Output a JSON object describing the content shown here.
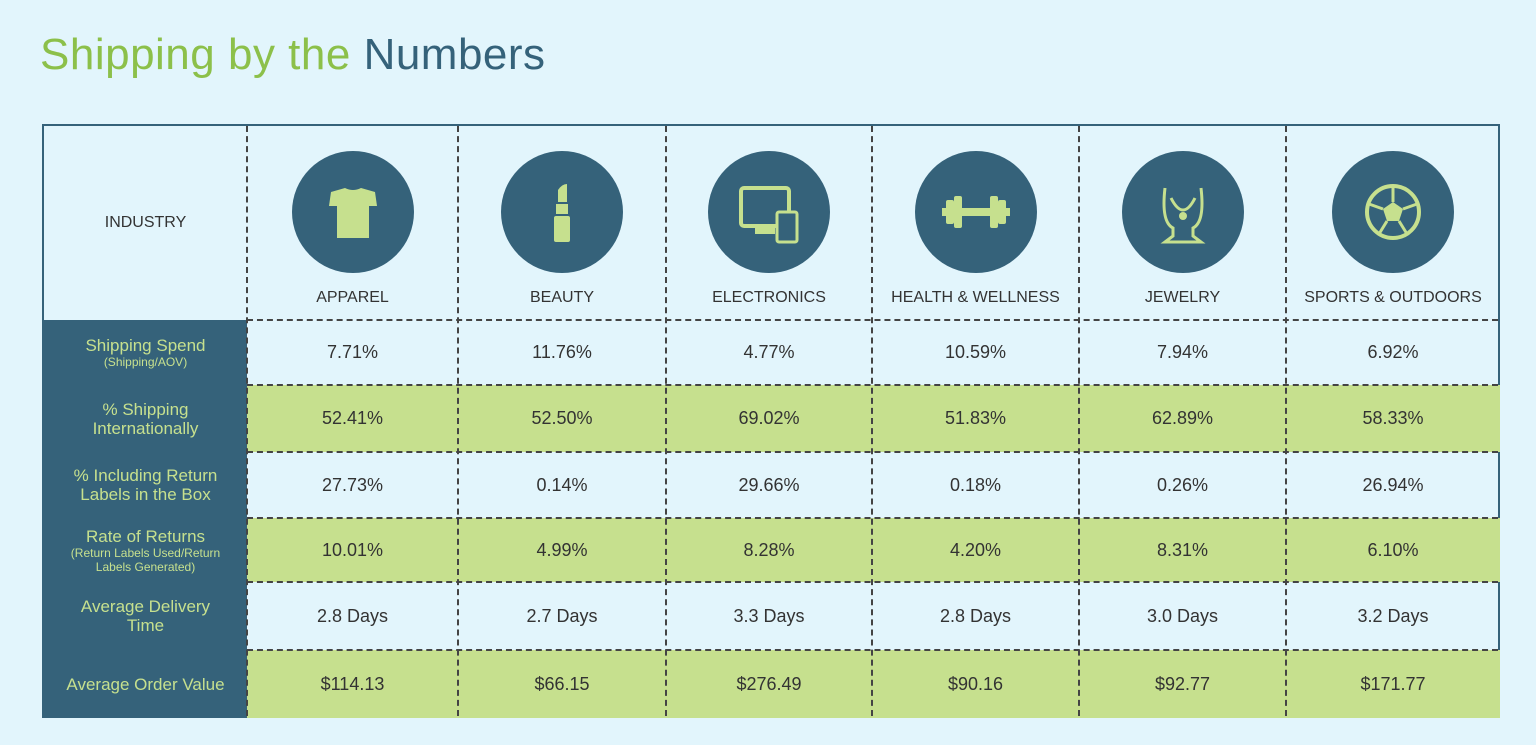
{
  "title": {
    "part1": "Shipping by the ",
    "part2": "Numbers"
  },
  "colors": {
    "background": "#e2f5fc",
    "dark": "#35627a",
    "green": "#c6e08e",
    "title_green": "#8cc04a"
  },
  "header_label": "INDUSTRY",
  "industries": [
    {
      "name": "APPAREL",
      "icon": "tshirt-icon"
    },
    {
      "name": "BEAUTY",
      "icon": "lipstick-icon"
    },
    {
      "name": "ELECTRONICS",
      "icon": "computer-tablet-icon"
    },
    {
      "name": "HEALTH & WELLNESS",
      "icon": "dumbbell-icon"
    },
    {
      "name": "JEWELRY",
      "icon": "necklace-icon"
    },
    {
      "name": "SPORTS & OUTDOORS",
      "icon": "soccer-ball-icon"
    }
  ],
  "rows": [
    {
      "label": "Shipping Spend",
      "sub": "(Shipping/AOV)",
      "values": [
        "7.71%",
        "11.76%",
        "4.77%",
        "10.59%",
        "7.94%",
        "6.92%"
      ]
    },
    {
      "label": "% Shipping Internationally",
      "sub": "",
      "values": [
        "52.41%",
        "52.50%",
        "69.02%",
        "51.83%",
        "62.89%",
        "58.33%"
      ]
    },
    {
      "label": "% Including Return Labels in the Box",
      "sub": "",
      "values": [
        "27.73%",
        "0.14%",
        "29.66%",
        "0.18%",
        "0.26%",
        "26.94%"
      ]
    },
    {
      "label": "Rate of Returns",
      "sub": "(Return Labels Used/Return Labels Generated)",
      "values": [
        "10.01%",
        "4.99%",
        "8.28%",
        "4.20%",
        "8.31%",
        "6.10%"
      ]
    },
    {
      "label": "Average Delivery Time",
      "sub": "",
      "values": [
        "2.8 Days",
        "2.7 Days",
        "3.3 Days",
        "2.8 Days",
        "3.0 Days",
        "3.2 Days"
      ]
    },
    {
      "label": "Average Order Value",
      "sub": "",
      "values": [
        "$114.13",
        "$66.15",
        "$276.49",
        "$90.16",
        "$92.77",
        "$171.77"
      ]
    }
  ]
}
